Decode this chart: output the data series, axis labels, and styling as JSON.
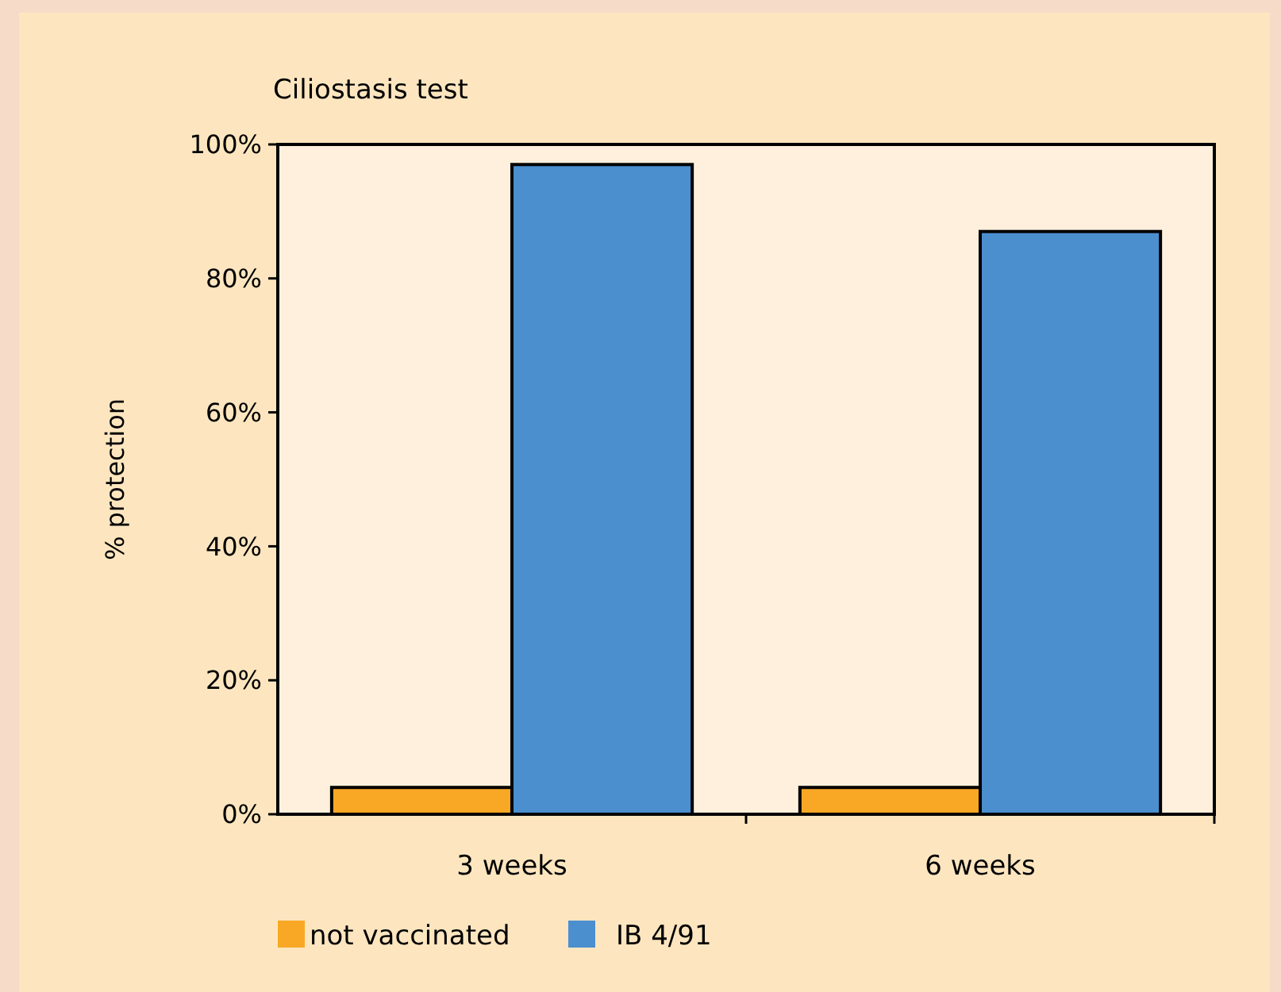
{
  "chart_data": {
    "type": "bar",
    "title": "Ciliostasis test",
    "ylabel": "% protection",
    "categories": [
      "3 weeks",
      "6 weeks"
    ],
    "series": [
      {
        "name": "not vaccinated",
        "color": "#f9a825",
        "values": [
          4,
          4
        ]
      },
      {
        "name": "IB 4/91",
        "color": "#4b8fcf",
        "values": [
          97,
          87
        ]
      }
    ],
    "ylim": [
      0,
      100
    ],
    "yticks": [
      {
        "value": 0,
        "label": "0%"
      },
      {
        "value": 20,
        "label": "20%"
      },
      {
        "value": 40,
        "label": "40%"
      },
      {
        "value": 60,
        "label": "60%"
      },
      {
        "value": 80,
        "label": "80%"
      },
      {
        "value": 100,
        "label": "100%"
      }
    ],
    "grid": false,
    "legend": "bottom"
  }
}
